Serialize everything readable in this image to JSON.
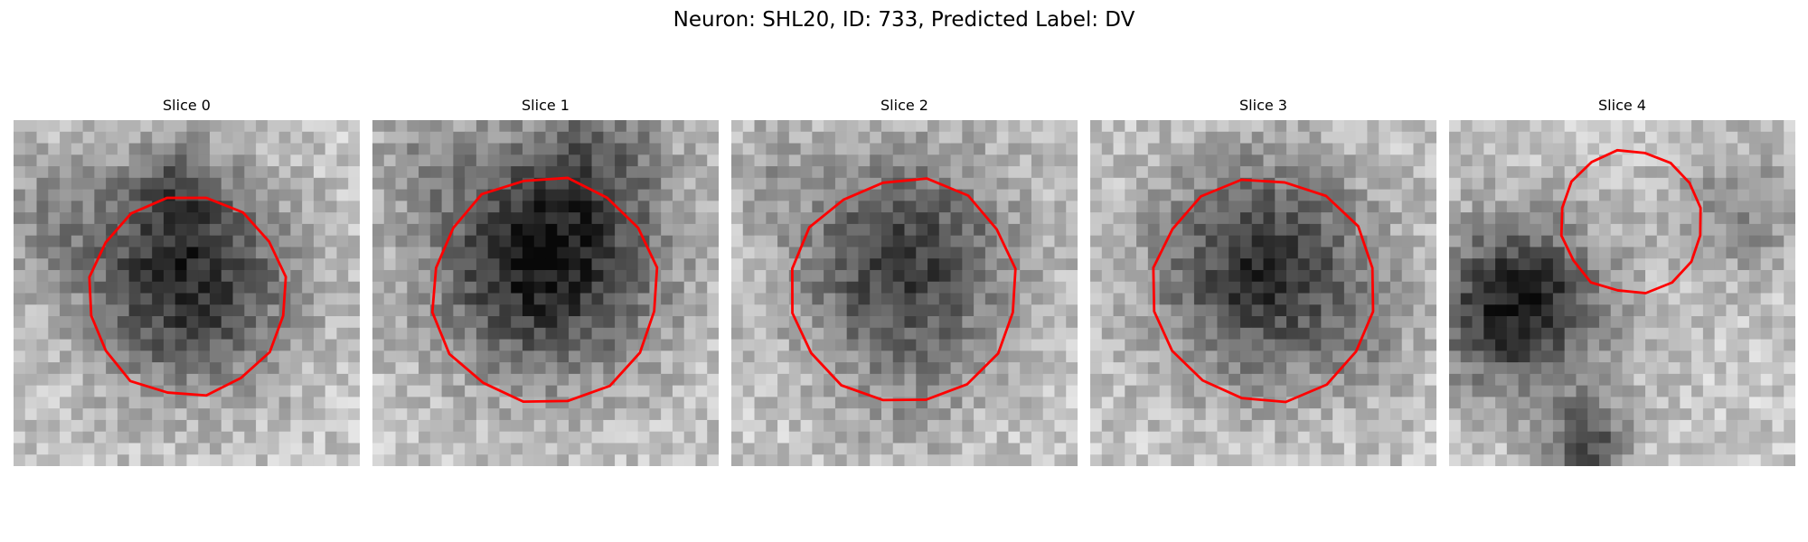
{
  "figure": {
    "title": "Neuron: SHL20, ID: 733, Predicted Label: DV"
  },
  "colors": {
    "contour": "#ff0000",
    "background": "#ffffff"
  },
  "panels": [
    {
      "title": "Slice 0"
    },
    {
      "title": "Slice 1"
    },
    {
      "title": "Slice 2"
    },
    {
      "title": "Slice 3"
    },
    {
      "title": "Slice 4"
    }
  ]
}
